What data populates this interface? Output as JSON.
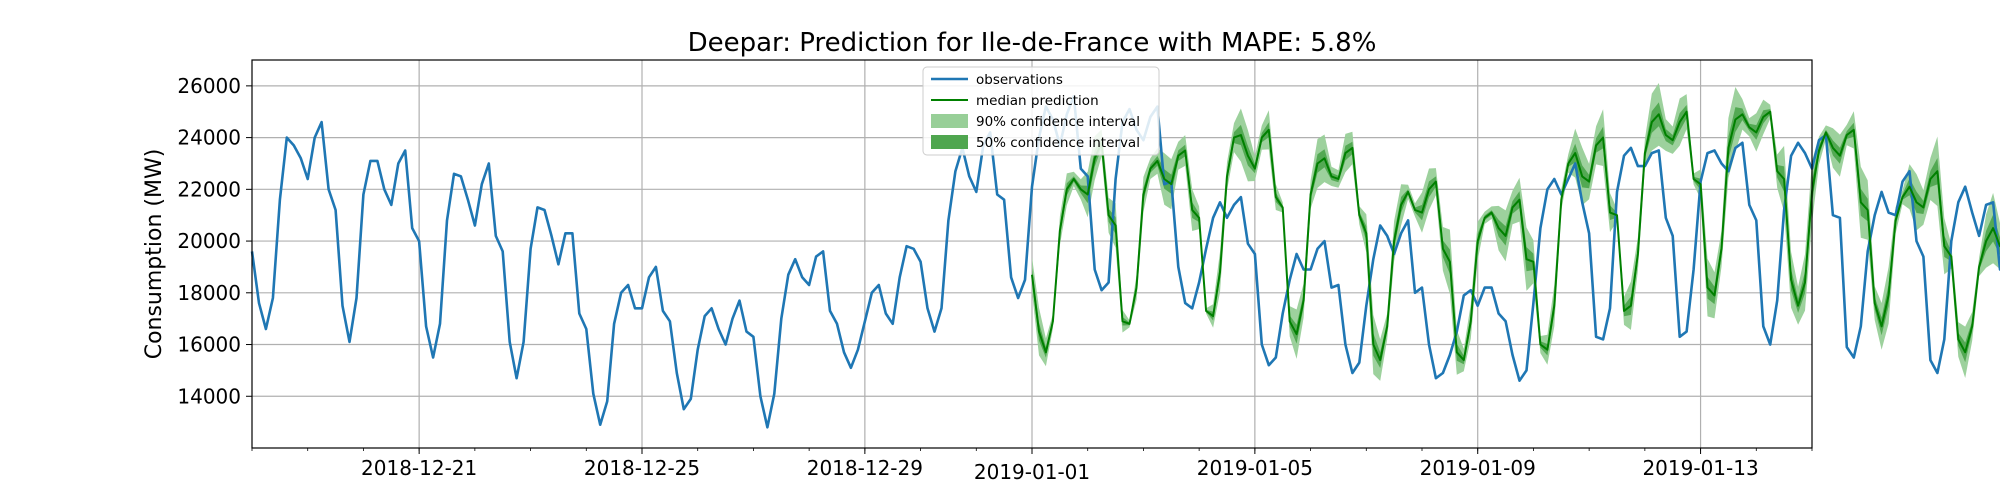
{
  "chart_data": {
    "type": "line",
    "title": "Deepar: Prediction for Ile-de-France with MAPE: 5.8%",
    "xlabel": "",
    "ylabel": "Consumption (MW)",
    "xlim": [
      "2018-12-18",
      "2019-01-15"
    ],
    "ylim": [
      12000,
      27000
    ],
    "grid": true,
    "legend_position": "top-center",
    "x_ticks": [
      "2018-12-21",
      "2018-12-25",
      "2018-12-29",
      "2019-01-01",
      "2019-01-05",
      "2019-01-09",
      "2019-01-13"
    ],
    "y_ticks": [
      14000,
      16000,
      18000,
      20000,
      22000,
      24000,
      26000
    ],
    "colors": {
      "observations": "#1f77b4",
      "median": "#008000",
      "ci90": "#98cf98",
      "ci50": "#4fa64f"
    },
    "legend": [
      {
        "label": "observations",
        "kind": "line",
        "color": "#1f77b4"
      },
      {
        "label": "median prediction",
        "kind": "line",
        "color": "#008000"
      },
      {
        "label": "90% confidence interval",
        "kind": "patch",
        "color": "#98cf98"
      },
      {
        "label": "50% confidence interval",
        "kind": "patch",
        "color": "#4fa64f"
      }
    ],
    "series": [
      {
        "name": "observations",
        "x_start": "2018-12-18",
        "step_days": 0.125,
        "values": [
          19600,
          17600,
          16600,
          17800,
          21600,
          24000,
          23700,
          23200,
          22400,
          24000,
          24600,
          22000,
          21200,
          17500,
          16100,
          17800,
          21800,
          23100,
          23100,
          22000,
          21400,
          23000,
          23500,
          20500,
          20000,
          16700,
          15500,
          16800,
          20800,
          22600,
          22500,
          21600,
          20600,
          22200,
          23000,
          20200,
          19600,
          16100,
          14700,
          16100,
          19700,
          21300,
          21200,
          20200,
          19100,
          20300,
          20300,
          17200,
          16600,
          14100,
          12900,
          13800,
          16800,
          18000,
          18300,
          17400,
          17400,
          18600,
          19000,
          17300,
          16900,
          14900,
          13500,
          13900,
          15800,
          17100,
          17400,
          16600,
          16000,
          17000,
          17700,
          16500,
          16300,
          14000,
          12800,
          14100,
          17000,
          18700,
          19300,
          18600,
          18300,
          19400,
          19600,
          17300,
          16800,
          15700,
          15100,
          15800,
          16900,
          18000,
          18300,
          17200,
          16800,
          18600,
          19800,
          19700,
          19200,
          17400,
          16500,
          17400,
          20800,
          22700,
          23600,
          22500,
          21900,
          23700,
          24200,
          21800,
          21600,
          18600,
          17800,
          18500,
          22100,
          24000,
          25200,
          24700,
          23700,
          24900,
          25600,
          22800,
          22500,
          18900,
          18100,
          18400,
          22400,
          24600,
          25100,
          24300,
          23900,
          24800,
          25200,
          22200,
          22300,
          19000,
          17600,
          17400,
          18400,
          19700,
          20900,
          21500,
          20900,
          21400,
          21700,
          19900,
          19500,
          16000,
          15200,
          15500,
          17200,
          18500,
          19500,
          18900,
          18900,
          19700,
          20000,
          18200,
          18300,
          16000,
          14900,
          15300,
          17500,
          19300,
          20600,
          20200,
          19500,
          20300,
          20800,
          18000,
          18200,
          16000,
          14700,
          14900,
          15600,
          16500,
          17900,
          18100,
          17500,
          18200,
          18200,
          17200,
          16900,
          15600,
          14600,
          15000,
          17600,
          20500,
          22000,
          22400,
          21800,
          22400,
          23000,
          21500,
          20300,
          16300,
          16200,
          17400,
          21900,
          23300,
          23600,
          22900,
          22900,
          23400,
          23500,
          20900,
          20200,
          16300,
          16500,
          18900,
          22300,
          23400,
          23500,
          23000,
          22700,
          23600,
          23800,
          21400,
          20800,
          16700,
          16000,
          17700,
          21200,
          23300,
          23800,
          23400,
          22800,
          23900,
          24100,
          21000,
          20900,
          15900,
          15500,
          16700,
          19600,
          21000,
          21900,
          21100,
          21000,
          22300,
          22700,
          20000,
          19400,
          15400,
          14900,
          16200,
          20000,
          21500,
          22100,
          21100,
          20200,
          21400,
          21500,
          18900,
          18800,
          15500,
          15600,
          17400,
          21800,
          23200,
          23500,
          22900,
          22300,
          23900,
          24300,
          21100,
          21000,
          16200,
          16000,
          18400,
          22400,
          22600,
          22500,
          22400,
          22200,
          23300,
          23500,
          21500,
          20500,
          16300,
          16600,
          19700,
          23900,
          24500,
          24700,
          24000,
          23900,
          25100,
          25600,
          22700,
          23000,
          18200,
          17900,
          19500,
          24100,
          25800,
          25600,
          25200,
          24300,
          25800,
          26100,
          23300,
          23200,
          17900,
          17600,
          18800,
          22500,
          24000,
          24400,
          23900,
          23300,
          24000,
          24200,
          21600,
          20800,
          16600,
          15600,
          16600,
          19900,
          21400,
          21900,
          20900,
          20300,
          21700,
          22000,
          19900,
          19300,
          15200,
          14600,
          15600,
          18200,
          19400,
          20100,
          19100,
          18200,
          19900,
          20200,
          18600,
          18700,
          15200,
          14700,
          16000,
          20900,
          22500,
          22600,
          21600,
          21500,
          23500,
          23800,
          21100,
          20600
        ]
      },
      {
        "name": "median prediction",
        "x_start": "2019-01-01",
        "step_days": 0.125,
        "values": [
          18700,
          16500,
          15700,
          16900,
          20400,
          22000,
          22400,
          22000,
          21800,
          23200,
          23800,
          21000,
          20600,
          16900,
          16800,
          18200,
          21800,
          22800,
          23100,
          22400,
          22200,
          23300,
          23500,
          21200,
          20900,
          17300,
          17100,
          18800,
          22500,
          24000,
          24100,
          23300,
          22800,
          24000,
          24300,
          21700,
          21300,
          16900,
          16400,
          17700,
          21800,
          23000,
          23200,
          22500,
          22400,
          23400,
          23600,
          21000,
          20300,
          16000,
          15400,
          16700,
          20000,
          21400,
          21900,
          21200,
          21100,
          22000,
          22300,
          19700,
          19200,
          15700,
          15400,
          16900,
          20000,
          20900,
          21100,
          20500,
          20200,
          21300,
          21600,
          19300,
          19200,
          16000,
          15800,
          17500,
          21600,
          23000,
          23400,
          22500,
          22300,
          23700,
          24000,
          21100,
          21000,
          17300,
          17500,
          19500,
          23400,
          24600,
          24900,
          24100,
          23900,
          24600,
          25000,
          22400,
          22200,
          18200,
          17900,
          19700,
          23600,
          24700,
          24900,
          24400,
          24200,
          24800,
          25000,
          22700,
          22400,
          18500,
          17500,
          18400,
          21900,
          23500,
          24200,
          23600,
          23300,
          24100,
          24300,
          21500,
          21200,
          17600,
          16700,
          17900,
          20800,
          21700,
          22100,
          21500,
          21300,
          22400,
          22700,
          19800,
          19400,
          16200,
          15700,
          16700,
          19000,
          20000,
          20500,
          19800,
          19700,
          20700,
          20900,
          19100,
          18900,
          16200,
          15700,
          16600,
          20000,
          21000,
          21500,
          20900,
          20800,
          22100,
          22500,
          20200,
          19700
        ]
      }
    ]
  }
}
